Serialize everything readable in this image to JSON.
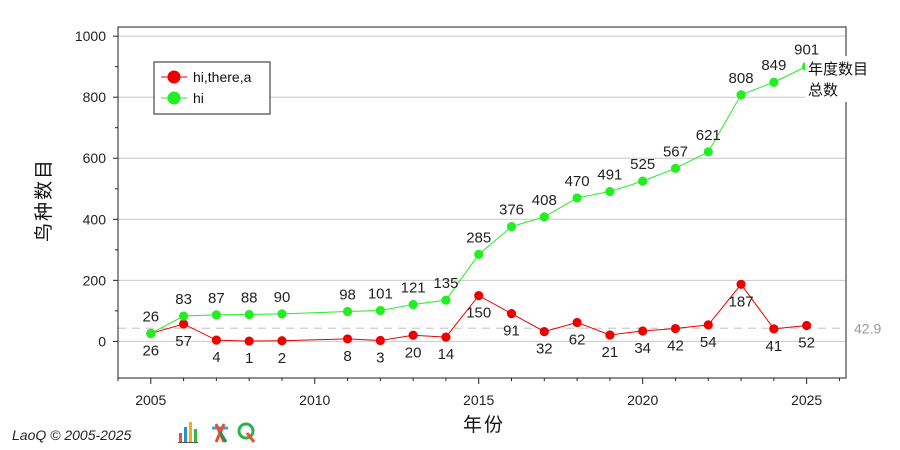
{
  "chart_data": {
    "type": "line",
    "ylabel": "鸟种数目",
    "xlabel": "年份",
    "ylim": [
      -120,
      1030
    ],
    "xlim": [
      2004,
      2026.2
    ],
    "yticks": [
      0,
      200,
      400,
      600,
      800,
      1000
    ],
    "xticks": [
      2005,
      2010,
      2015,
      2020,
      2025
    ],
    "grid": "horizontal",
    "legend_position": "top-left",
    "reference_line": {
      "value": 42.9,
      "label": "42.9",
      "color": "#cccccc"
    },
    "annotation": {
      "lines": [
        "年度数目",
        "总数"
      ]
    },
    "series": [
      {
        "name": "hi,there,a",
        "color": "#ee0000",
        "label_position": "below",
        "points": [
          {
            "x": 2005,
            "y": 26
          },
          {
            "x": 2006,
            "y": 57
          },
          {
            "x": 2007,
            "y": 4
          },
          {
            "x": 2008,
            "y": 1
          },
          {
            "x": 2009,
            "y": 2
          },
          {
            "x": 2011,
            "y": 8
          },
          {
            "x": 2012,
            "y": 3
          },
          {
            "x": 2013,
            "y": 20
          },
          {
            "x": 2014,
            "y": 14
          },
          {
            "x": 2015,
            "y": 150
          },
          {
            "x": 2016,
            "y": 91
          },
          {
            "x": 2017,
            "y": 32
          },
          {
            "x": 2018,
            "y": 62
          },
          {
            "x": 2019,
            "y": 21
          },
          {
            "x": 2020,
            "y": 34
          },
          {
            "x": 2021,
            "y": 42
          },
          {
            "x": 2022,
            "y": 54
          },
          {
            "x": 2023,
            "y": 187
          },
          {
            "x": 2024,
            "y": 41
          },
          {
            "x": 2025,
            "y": 52
          }
        ]
      },
      {
        "name": "hi",
        "color": "#22ee22",
        "label_position": "above",
        "points": [
          {
            "x": 2005,
            "y": 26
          },
          {
            "x": 2006,
            "y": 83
          },
          {
            "x": 2007,
            "y": 87
          },
          {
            "x": 2008,
            "y": 88
          },
          {
            "x": 2009,
            "y": 90
          },
          {
            "x": 2011,
            "y": 98
          },
          {
            "x": 2012,
            "y": 101
          },
          {
            "x": 2013,
            "y": 121
          },
          {
            "x": 2014,
            "y": 135
          },
          {
            "x": 2015,
            "y": 285
          },
          {
            "x": 2016,
            "y": 376
          },
          {
            "x": 2017,
            "y": 408
          },
          {
            "x": 2018,
            "y": 470
          },
          {
            "x": 2019,
            "y": 491
          },
          {
            "x": 2020,
            "y": 525
          },
          {
            "x": 2021,
            "y": 567
          },
          {
            "x": 2022,
            "y": 621
          },
          {
            "x": 2023,
            "y": 808
          },
          {
            "x": 2024,
            "y": 849
          },
          {
            "x": 2025,
            "y": 901
          }
        ]
      }
    ]
  },
  "footer": {
    "credit": "LaoQ © 2005-2025"
  },
  "logo": {
    "icons": [
      "bar-chart-icon",
      "running-figure-icon",
      "letter-q-icon"
    ]
  }
}
